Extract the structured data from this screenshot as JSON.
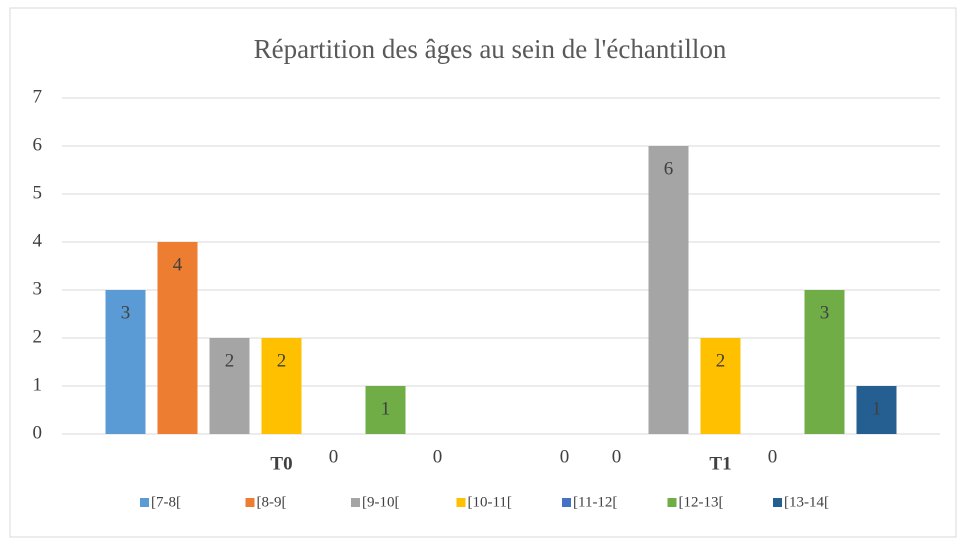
{
  "chart_data": {
    "type": "bar",
    "title": "Répartition des âges au sein de l'échantillon",
    "categories": [
      "T0",
      "T1"
    ],
    "series": [
      {
        "name": "[7-8[",
        "color": "#5b9bd5",
        "values": [
          3,
          0
        ]
      },
      {
        "name": "[8-9[",
        "color": "#ed7d31",
        "values": [
          4,
          0
        ]
      },
      {
        "name": "[9-10[",
        "color": "#a5a5a5",
        "values": [
          2,
          6
        ]
      },
      {
        "name": "[10-11[",
        "color": "#ffc000",
        "values": [
          2,
          2
        ]
      },
      {
        "name": "[11-12[",
        "color": "#4472c4",
        "values": [
          0,
          0
        ]
      },
      {
        "name": "[12-13[",
        "color": "#70ad47",
        "values": [
          1,
          3
        ]
      },
      {
        "name": "[13-14[",
        "color": "#255e91",
        "values": [
          0,
          1
        ]
      }
    ],
    "ylim": [
      0,
      7
    ],
    "yticks": [
      0,
      1,
      2,
      3,
      4,
      5,
      6,
      7
    ],
    "grid": true,
    "legend": "bottom"
  }
}
